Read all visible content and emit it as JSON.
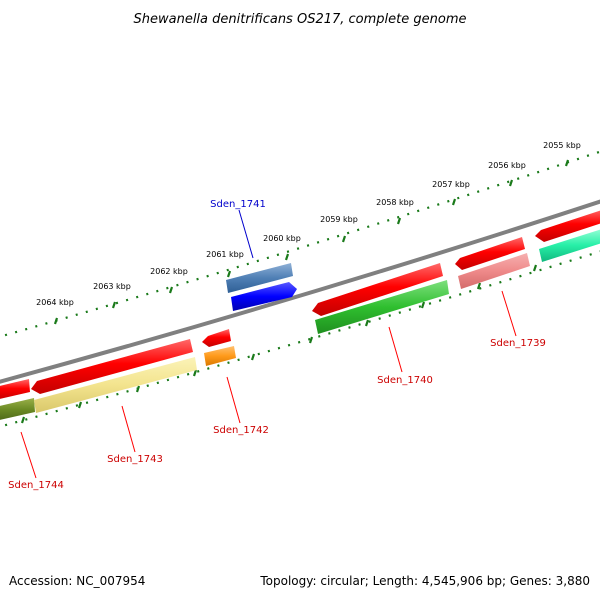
{
  "title": "Shewanella denitrificans OS217, complete genome",
  "footer": {
    "accession": "Accession: NC_007954",
    "summary": "Topology: circular; Length: 4,545,906 bp; Genes: 3,880"
  },
  "ruler": {
    "labels": [
      "2064 kbp",
      "2063 kbp",
      "2062 kbp",
      "2061 kbp",
      "2060 kbp",
      "2059 kbp",
      "2058 kbp",
      "2057 kbp",
      "2056 kbp",
      "2055 kbp"
    ]
  },
  "genes": {
    "sden_1744": "Sden_1744",
    "sden_1743": "Sden_1743",
    "sden_1742": "Sden_1742",
    "sden_1741": "Sden_1741",
    "sden_1740": "Sden_1740",
    "sden_1739": "Sden_1739"
  },
  "colors": {
    "backbone": "#808080",
    "cds_forward": "#ff0000",
    "label_red": "#cc0000",
    "label_blue": "#0000cc",
    "tick_green": "#1a7a1a"
  }
}
